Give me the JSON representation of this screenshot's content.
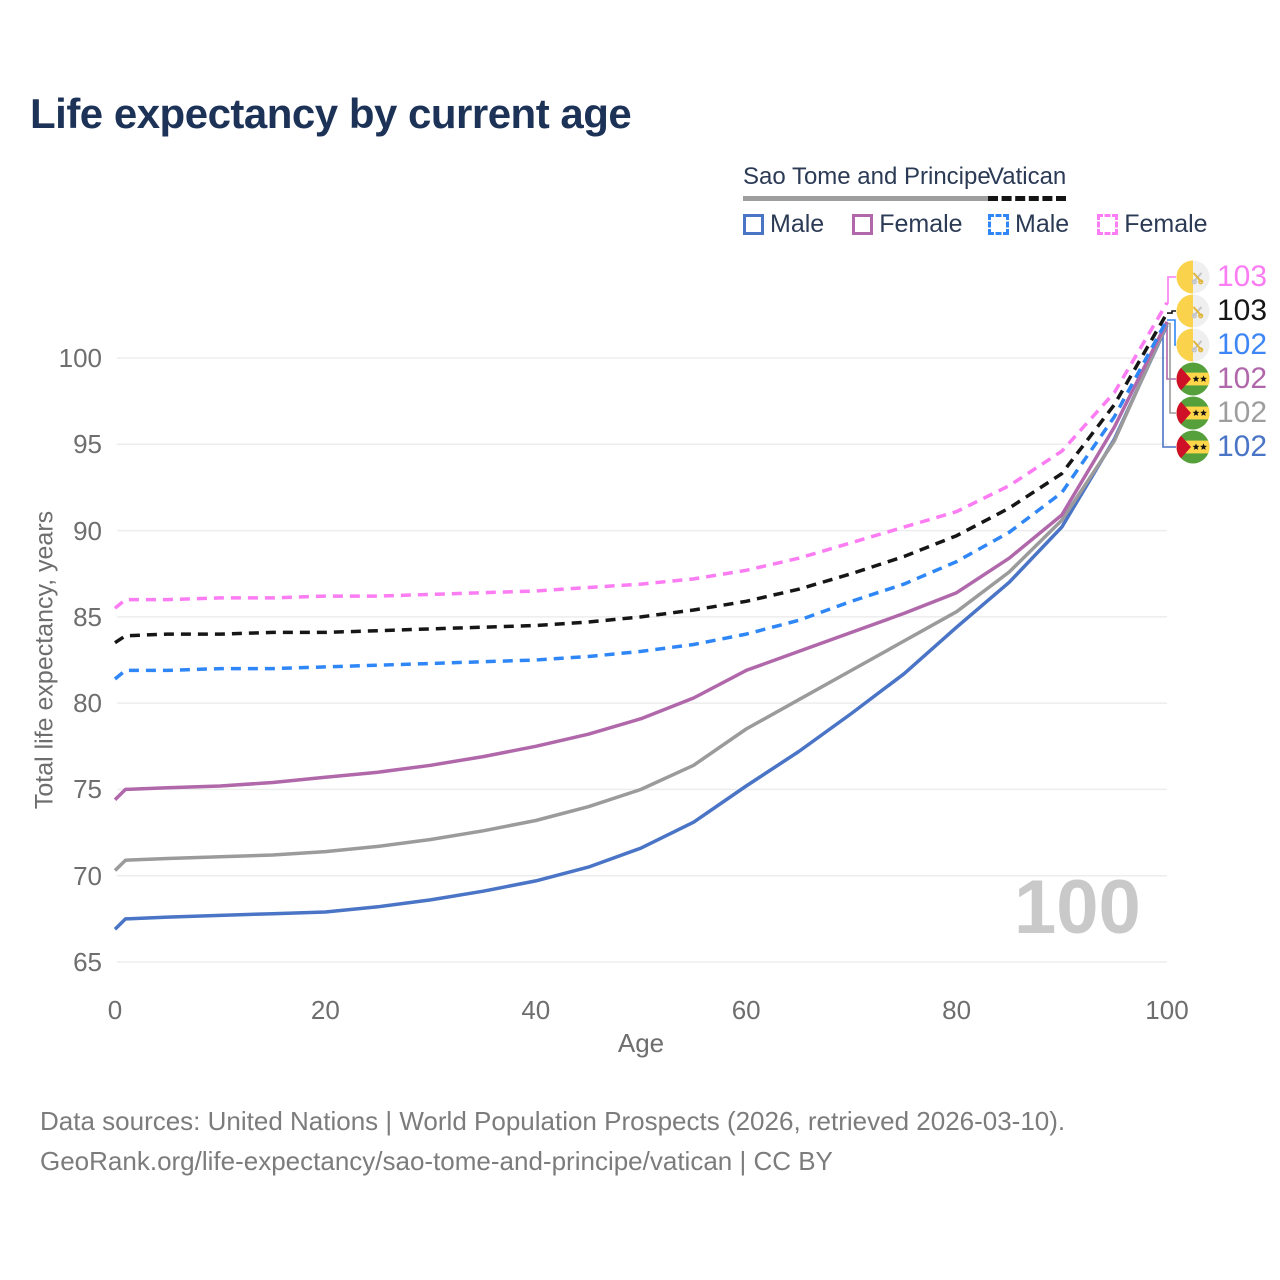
{
  "title": "Life expectancy by current age",
  "watermark_age": "100",
  "legend": {
    "groups": [
      {
        "label": "Sao Tome and Principe",
        "underline": "solid",
        "underline_color": "#9e9e9e",
        "items": [
          {
            "label": "Male",
            "style": "solid",
            "color": "#4a74c5"
          },
          {
            "label": "Female",
            "style": "solid",
            "color": "#b168ab"
          }
        ]
      },
      {
        "label": "Vatican",
        "underline": "dashed",
        "underline_color": "#141414",
        "items": [
          {
            "label": "Male",
            "style": "dashed",
            "color": "#2f87f7"
          },
          {
            "label": "Female",
            "style": "dashed",
            "color": "#fb7cf3"
          }
        ]
      }
    ]
  },
  "chart_data": {
    "type": "line",
    "title": "Life expectancy by current age",
    "xlabel": "Age",
    "ylabel": "Total life expectancy, years",
    "xlim": [
      0,
      100
    ],
    "ylim": [
      63.5,
      104
    ],
    "xticks": [
      "0",
      "20",
      "40",
      "60",
      "80",
      "100"
    ],
    "yticks": [
      "65",
      "70",
      "75",
      "80",
      "85",
      "90",
      "95",
      "100"
    ],
    "grid": "horizontal-only",
    "legend_position": "top-right",
    "x": [
      0,
      1,
      5,
      10,
      15,
      20,
      25,
      30,
      35,
      40,
      45,
      50,
      55,
      60,
      65,
      70,
      75,
      80,
      85,
      90,
      95,
      100
    ],
    "series": [
      {
        "id": "vatican-female",
        "country": "Vatican",
        "sex": "Female",
        "line": "dashed",
        "color": "#fb7cf3",
        "values": [
          85.5,
          86.0,
          86.0,
          86.1,
          86.1,
          86.2,
          86.2,
          86.3,
          86.4,
          86.5,
          86.7,
          86.9,
          87.2,
          87.7,
          88.4,
          89.3,
          90.2,
          91.1,
          92.6,
          94.6,
          98.0,
          103.2
        ],
        "end_label": "103",
        "label_color": "#fb7cf3",
        "flag": "vatican"
      },
      {
        "id": "vatican-all",
        "country": "Vatican",
        "sex": "",
        "line": "dashed",
        "color": "#161616",
        "values": [
          83.5,
          83.9,
          84.0,
          84.0,
          84.1,
          84.1,
          84.2,
          84.3,
          84.4,
          84.5,
          84.7,
          85.0,
          85.4,
          85.9,
          86.6,
          87.5,
          88.5,
          89.7,
          91.3,
          93.3,
          97.3,
          102.6
        ],
        "end_label": "103",
        "label_color": "#161616",
        "flag": "vatican"
      },
      {
        "id": "vatican-male",
        "country": "Vatican",
        "sex": "Male",
        "line": "dashed",
        "color": "#2f87f7",
        "values": [
          81.4,
          81.9,
          81.9,
          82.0,
          82.0,
          82.1,
          82.2,
          82.3,
          82.4,
          82.5,
          82.7,
          83.0,
          83.4,
          84.0,
          84.8,
          85.9,
          86.9,
          88.2,
          89.9,
          92.2,
          96.6,
          102.2
        ],
        "end_label": "102",
        "label_color": "#3e86f5",
        "flag": "vatican"
      },
      {
        "id": "sao-tome-female",
        "country": "Sao Tome and Principe",
        "sex": "Female",
        "line": "solid",
        "color": "#b168ab",
        "values": [
          74.4,
          75.0,
          75.1,
          75.2,
          75.4,
          75.7,
          76.0,
          76.4,
          76.9,
          77.5,
          78.2,
          79.1,
          80.3,
          81.9,
          83.0,
          84.1,
          85.2,
          86.4,
          88.4,
          90.9,
          96.0,
          102.1
        ],
        "end_label": "102",
        "label_color": "#b168ab",
        "flag": "sao-tome"
      },
      {
        "id": "sao-tome-all",
        "country": "Sao Tome and Principe",
        "sex": "",
        "line": "solid",
        "color": "#9b9b9b",
        "values": [
          70.3,
          70.9,
          71.0,
          71.1,
          71.2,
          71.4,
          71.7,
          72.1,
          72.6,
          73.2,
          74.0,
          75.0,
          76.4,
          78.5,
          80.2,
          81.9,
          83.6,
          85.3,
          87.6,
          90.6,
          95.2,
          102.0
        ],
        "end_label": "102",
        "label_color": "#9e9e9e",
        "flag": "sao-tome"
      },
      {
        "id": "sao-tome-male",
        "country": "Sao Tome and Principe",
        "sex": "Male",
        "line": "solid",
        "color": "#4a74c5",
        "values": [
          66.9,
          67.5,
          67.6,
          67.7,
          67.8,
          67.9,
          68.2,
          68.6,
          69.1,
          69.7,
          70.5,
          71.6,
          73.1,
          75.2,
          77.2,
          79.4,
          81.7,
          84.4,
          87.0,
          90.2,
          95.3,
          101.9
        ],
        "end_label": "102",
        "label_color": "#4a74c5",
        "flag": "sao-tome"
      }
    ]
  },
  "footer": {
    "line1": "Data sources: United Nations | World Population Prospects (2026, retrieved 2026-03-10).",
    "line2": "GeoRank.org/life-expectancy/sao-tome-and-principe/vatican | CC BY"
  }
}
